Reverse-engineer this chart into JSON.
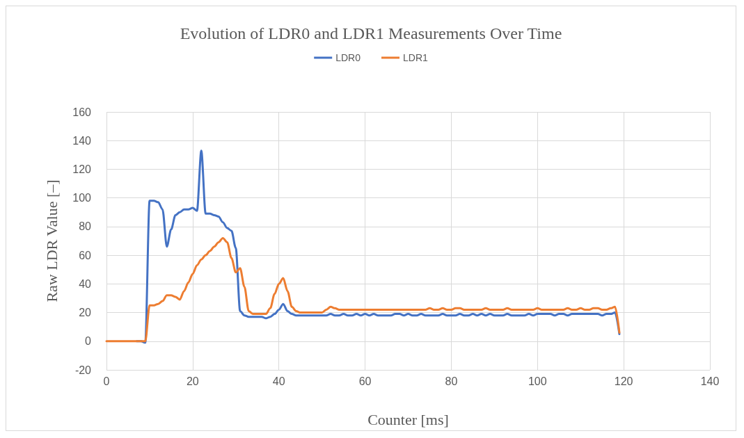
{
  "chart_data": {
    "type": "line",
    "title": "Evolution of LDR0 and LDR1 Measurements Over Time",
    "xlabel": "Counter [ms]",
    "ylabel": "Raw LDR Value [–]",
    "x": [
      0,
      1,
      2,
      3,
      4,
      5,
      6,
      7,
      8,
      9,
      10,
      11,
      12,
      13,
      14,
      15,
      16,
      17,
      18,
      19,
      20,
      21,
      22,
      23,
      24,
      25,
      26,
      27,
      28,
      29,
      30,
      31,
      32,
      33,
      34,
      35,
      36,
      37,
      38,
      39,
      40,
      41,
      42,
      43,
      44,
      45,
      46,
      47,
      48,
      49,
      50,
      51,
      52,
      53,
      54,
      55,
      56,
      57,
      58,
      59,
      60,
      61,
      62,
      63,
      64,
      65,
      66,
      67,
      68,
      69,
      70,
      71,
      72,
      73,
      74,
      75,
      76,
      77,
      78,
      79,
      80,
      81,
      82,
      83,
      84,
      85,
      86,
      87,
      88,
      89,
      90,
      91,
      92,
      93,
      94,
      95,
      96,
      97,
      98,
      99,
      100,
      101,
      102,
      103,
      104,
      105,
      106,
      107,
      108,
      109,
      110,
      111,
      112,
      113,
      114,
      115,
      116,
      117,
      118,
      119
    ],
    "series": [
      {
        "name": "LDR0",
        "color": "#4472c4",
        "values": [
          null,
          null,
          null,
          null,
          null,
          null,
          null,
          0,
          0,
          -1,
          98,
          98,
          97,
          92,
          66,
          78,
          88,
          90,
          92,
          92,
          93,
          91,
          133,
          89,
          89,
          88,
          87,
          83,
          79,
          77,
          65,
          21,
          18,
          17,
          17,
          17,
          17,
          16,
          17,
          19,
          22,
          26,
          21,
          19,
          18,
          18,
          18,
          18,
          18,
          18,
          18,
          18,
          19,
          18,
          18,
          19,
          18,
          18,
          19,
          18,
          19,
          18,
          19,
          18,
          18,
          18,
          18,
          19,
          19,
          18,
          19,
          18,
          18,
          19,
          18,
          18,
          18,
          18,
          19,
          18,
          18,
          18,
          19,
          18,
          18,
          19,
          18,
          19,
          18,
          19,
          18,
          18,
          18,
          19,
          18,
          18,
          18,
          18,
          19,
          18,
          19,
          19,
          19,
          19,
          18,
          19,
          19,
          18,
          19,
          19,
          19,
          19,
          19,
          19,
          19,
          18,
          19,
          19,
          20,
          5
        ]
      },
      {
        "name": "LDR1",
        "color": "#ed7d31",
        "values": [
          0,
          0,
          0,
          0,
          0,
          0,
          0,
          0,
          0,
          0,
          25,
          25,
          26,
          28,
          32,
          32,
          31,
          29,
          35,
          41,
          47,
          53,
          57,
          60,
          63,
          66,
          69,
          72,
          69,
          58,
          48,
          51,
          38,
          21,
          19,
          19,
          19,
          19,
          23,
          33,
          40,
          44,
          35,
          24,
          21,
          20,
          20,
          20,
          20,
          20,
          20,
          22,
          24,
          23,
          22,
          22,
          22,
          22,
          22,
          22,
          22,
          22,
          22,
          22,
          22,
          22,
          22,
          22,
          22,
          22,
          22,
          22,
          22,
          22,
          22,
          23,
          22,
          22,
          23,
          22,
          22,
          23,
          23,
          22,
          22,
          22,
          22,
          22,
          23,
          22,
          22,
          22,
          22,
          23,
          22,
          22,
          22,
          22,
          22,
          22,
          23,
          22,
          22,
          22,
          22,
          22,
          22,
          23,
          22,
          22,
          23,
          22,
          22,
          23,
          23,
          22,
          22,
          23,
          24,
          6
        ]
      }
    ],
    "xlim": [
      0,
      140
    ],
    "xticks": [
      0,
      20,
      40,
      60,
      80,
      100,
      120,
      140
    ],
    "ylim": [
      -20,
      160
    ],
    "yticks": [
      -20,
      0,
      20,
      40,
      60,
      80,
      100,
      120,
      140,
      160
    ],
    "grid": true,
    "legend": "top",
    "marker": "none",
    "line_style": "solid"
  }
}
